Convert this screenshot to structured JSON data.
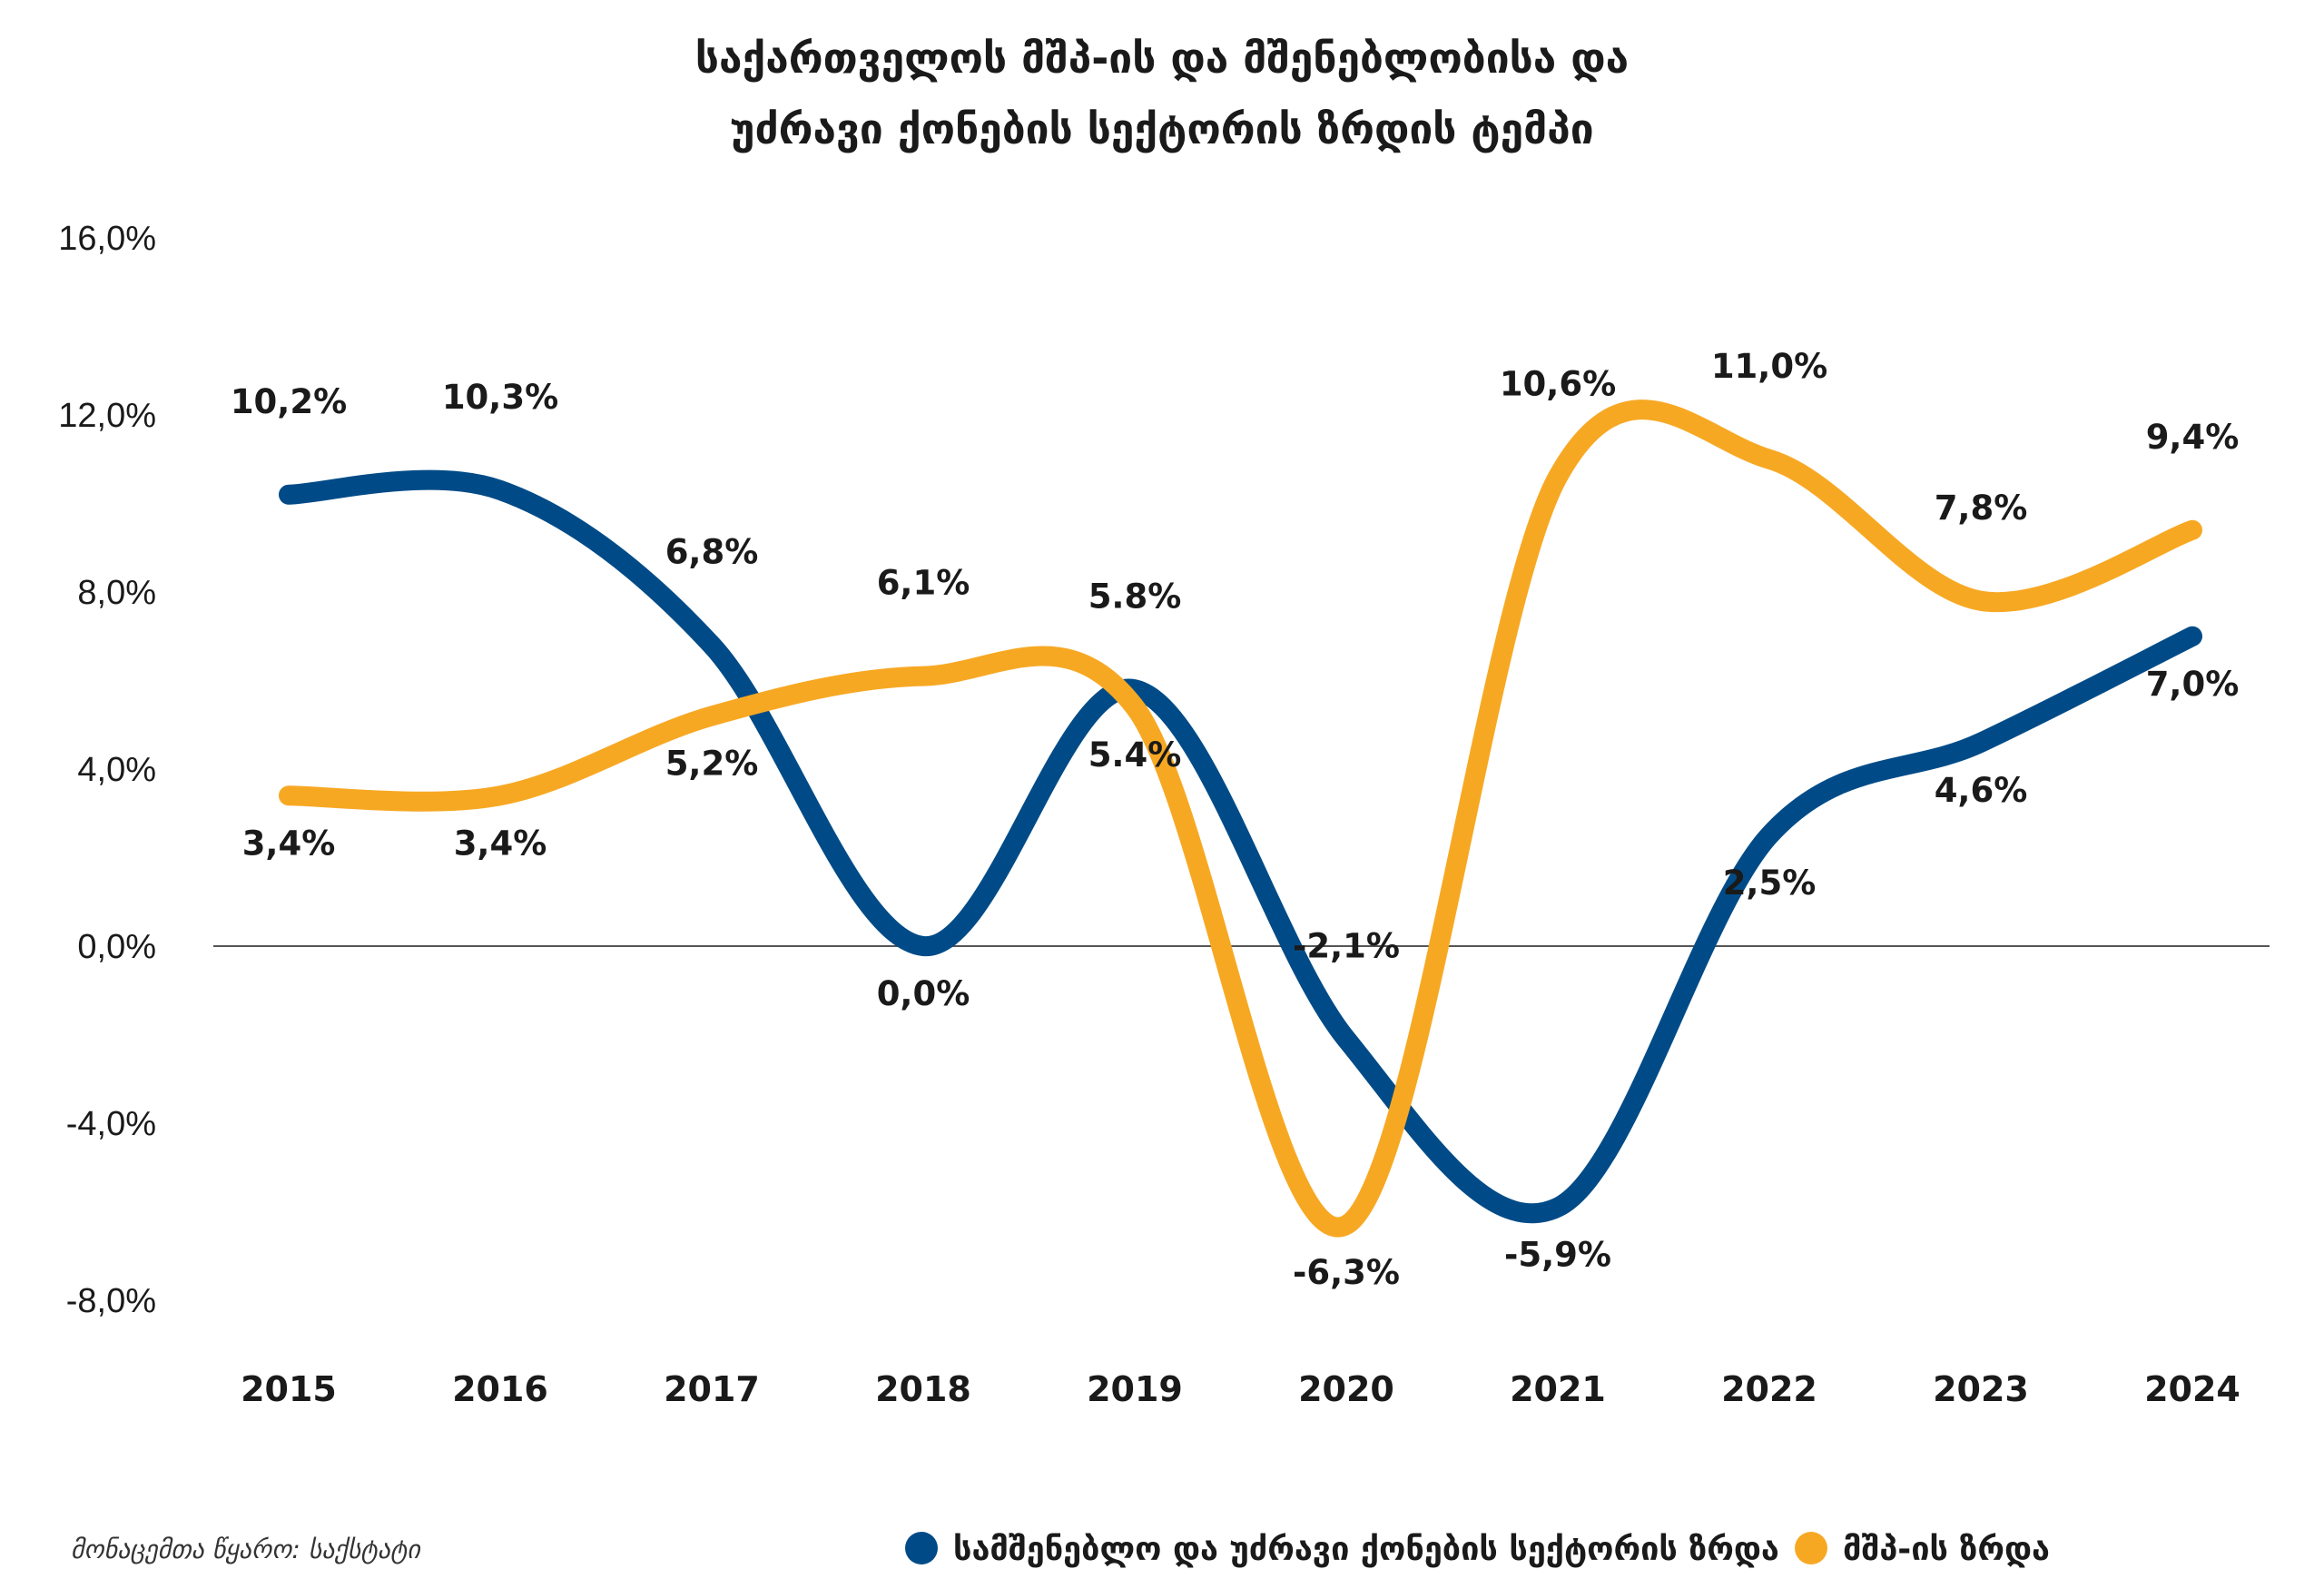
{
  "chart_data": {
    "type": "line",
    "title_lines": [
      "საქართველოს მშპ-ის და მშენებლობისა და",
      "უძრავი ქონების სექტორის ზრდის ტემპი"
    ],
    "categories": [
      "2015",
      "2016",
      "2017",
      "2018",
      "2019",
      "2020",
      "2021",
      "2022",
      "2023",
      "2024"
    ],
    "y_ticks": [
      "16,0%",
      "12,0%",
      "8,0%",
      "4,0%",
      "0,0%",
      "-4,0%",
      "-8,0%"
    ],
    "ylim": [
      -8,
      16
    ],
    "grid": false,
    "legend_position": "bottom",
    "series": [
      {
        "name": "სამშენებლო და უძრავი ქონების სექტორის ზრდა",
        "color": "#004b87",
        "values": [
          10.2,
          10.3,
          6.8,
          0.0,
          5.8,
          -2.1,
          -5.9,
          2.5,
          4.6,
          7.0
        ],
        "labels": [
          "10,2%",
          "10,3%",
          "6,8%",
          "0,0%",
          "5.8%",
          "-2,1%",
          "-5,9%",
          "2,5%",
          "4,6%",
          "7,0%"
        ]
      },
      {
        "name": "მშპ-ის ზრდა",
        "color": "#f7a823",
        "values": [
          3.4,
          3.4,
          5.2,
          6.1,
          5.4,
          -6.3,
          10.6,
          11.0,
          7.8,
          9.4
        ],
        "labels": [
          "3,4%",
          "3,4%",
          "5,2%",
          "6,1%",
          "5.4%",
          "-6,3%",
          "10,6%",
          "11,0%",
          "7,8%",
          "9,4%"
        ]
      }
    ]
  },
  "source": "მონაცემთა წყარო: საქსტატი"
}
